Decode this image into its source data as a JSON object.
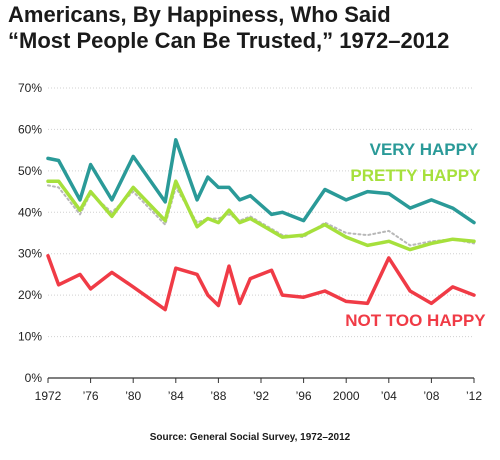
{
  "title_line1": "Americans, By Happiness, Who Said",
  "title_line2": "“Most People Can Be Trusted,” 1972–2012",
  "source": "Source: General Social Survey, 1972–2012",
  "chart_data": {
    "type": "line",
    "title": "Americans, By Happiness, Who Said “Most People Can Be Trusted,” 1972–2012",
    "ylim": [
      0,
      70
    ],
    "yticks": [
      0,
      10,
      20,
      30,
      40,
      50,
      60,
      70
    ],
    "ytick_labels": [
      "0%",
      "10%",
      "20%",
      "30%",
      "40%",
      "50%",
      "60%",
      "70%"
    ],
    "xlim": [
      1972,
      2012
    ],
    "xticks": [
      1972,
      1976,
      1980,
      1984,
      1988,
      1992,
      1996,
      2000,
      2004,
      2008,
      2012
    ],
    "xtick_labels": [
      "1972",
      "’76",
      "’80",
      "’84",
      "’88",
      "’92",
      "’96",
      "2000",
      "’04",
      "’08",
      "’12"
    ],
    "grid": "horizontal",
    "series": [
      {
        "name": "VERY HAPPY",
        "color": "#2a9a98",
        "x": [
          1972,
          1973,
          1975,
          1976,
          1978,
          1980,
          1983,
          1984,
          1986,
          1987,
          1988,
          1989,
          1990,
          1991,
          1993,
          1994,
          1996,
          1998,
          2000,
          2002,
          2004,
          2006,
          2008,
          2010,
          2012
        ],
        "values": [
          53,
          52.5,
          43,
          51.5,
          43,
          53.5,
          42.5,
          57.5,
          43,
          48.5,
          46,
          46,
          43,
          44,
          39.5,
          40,
          38,
          45.5,
          43,
          45,
          44.5,
          41,
          43,
          41,
          37.5
        ]
      },
      {
        "name": "PRETTY HAPPY",
        "color": "#a6e03c",
        "x": [
          1972,
          1973,
          1975,
          1976,
          1978,
          1980,
          1983,
          1984,
          1986,
          1987,
          1988,
          1989,
          1990,
          1991,
          1993,
          1994,
          1996,
          1998,
          2000,
          2002,
          2004,
          2006,
          2008,
          2010,
          2012
        ],
        "values": [
          47.5,
          47.5,
          40.5,
          45,
          39,
          46,
          38,
          47.5,
          36.5,
          38.5,
          37.5,
          40.5,
          37.5,
          38.5,
          35.5,
          34,
          34.5,
          37,
          34,
          32,
          33,
          31,
          32.5,
          33.5,
          33
        ]
      },
      {
        "name": "",
        "color": "#b8b8b8",
        "dashed": true,
        "x": [
          1972,
          1973,
          1975,
          1976,
          1978,
          1980,
          1983,
          1984,
          1986,
          1987,
          1988,
          1989,
          1990,
          1991,
          1993,
          1994,
          1996,
          1998,
          2000,
          2002,
          2004,
          2006,
          2008,
          2010,
          2012
        ],
        "values": [
          46.5,
          46,
          39.5,
          44.5,
          40,
          45,
          37,
          46,
          37.5,
          38.5,
          38.5,
          39.5,
          38,
          39,
          36,
          34.5,
          34,
          37.5,
          35,
          34.5,
          35.5,
          32,
          33,
          33.5,
          32.5
        ]
      },
      {
        "name": "NOT TOO HAPPY",
        "color": "#f03b46",
        "x": [
          1972,
          1973,
          1975,
          1976,
          1978,
          1980,
          1983,
          1984,
          1986,
          1987,
          1988,
          1989,
          1990,
          1991,
          1993,
          1994,
          1996,
          1998,
          2000,
          2002,
          2004,
          2006,
          2008,
          2010,
          2012
        ],
        "values": [
          29.5,
          22.5,
          25,
          21.5,
          25.5,
          22,
          16.5,
          26.5,
          25,
          20,
          17.5,
          27,
          18,
          24,
          26,
          20,
          19.5,
          21,
          18.5,
          18,
          29,
          21,
          18,
          22,
          20
        ]
      }
    ]
  }
}
